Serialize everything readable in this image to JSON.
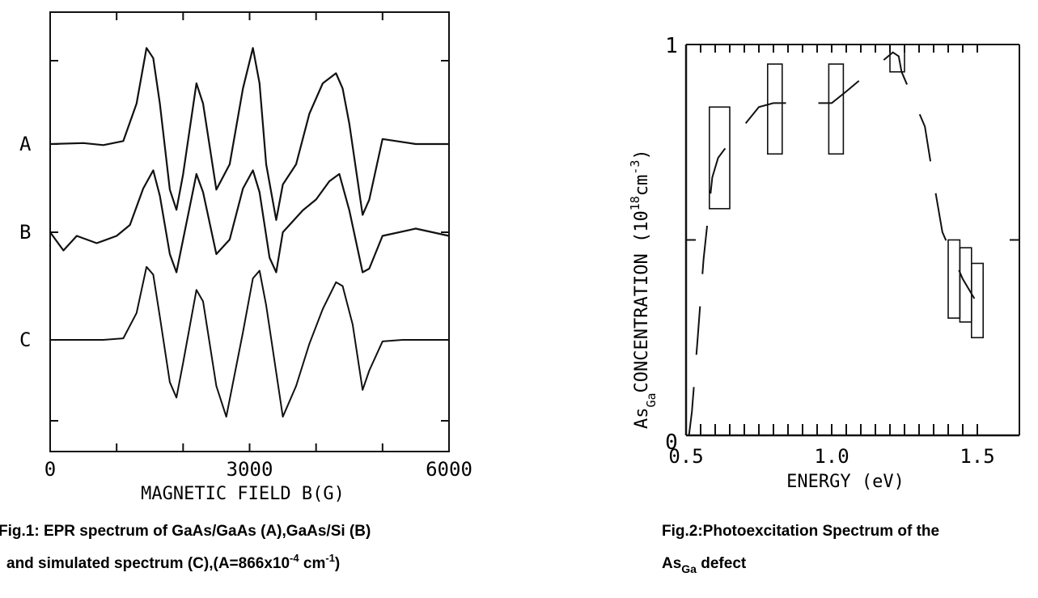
{
  "chart_data": [
    {
      "type": "line",
      "xlabel": "MAGNETIC FIELD B(G)",
      "x_ticks": [
        "0",
        "3000",
        "6000"
      ],
      "xlim": [
        0,
        6000
      ],
      "series": [
        {
          "name": "A",
          "x": [
            0,
            500,
            800,
            1100,
            1300,
            1450,
            1550,
            1650,
            1800,
            1900,
            2000,
            2200,
            2300,
            2500,
            2700,
            2900,
            3050,
            3150,
            3250,
            3400,
            3500,
            3700,
            3900,
            4100,
            4300,
            4400,
            4500,
            4700,
            4800,
            5000,
            5500,
            6000
          ],
          "y": [
            0.0,
            0.01,
            -0.01,
            0.03,
            0.4,
            0.95,
            0.85,
            0.4,
            -0.45,
            -0.65,
            -0.3,
            0.6,
            0.4,
            -0.45,
            -0.2,
            0.55,
            0.95,
            0.6,
            -0.2,
            -0.75,
            -0.4,
            -0.2,
            0.3,
            0.6,
            0.7,
            0.55,
            0.2,
            -0.7,
            -0.55,
            0.05,
            0.0,
            0.0
          ]
        },
        {
          "name": "B",
          "x": [
            0,
            200,
            400,
            700,
            1000,
            1200,
            1400,
            1550,
            1650,
            1800,
            1900,
            2000,
            2200,
            2300,
            2500,
            2700,
            2900,
            3050,
            3150,
            3300,
            3400,
            3500,
            3800,
            4000,
            4200,
            4350,
            4500,
            4700,
            4800,
            5000,
            5500,
            6000
          ],
          "y": [
            0.0,
            -0.25,
            -0.05,
            -0.15,
            -0.05,
            0.1,
            0.6,
            0.85,
            0.5,
            -0.3,
            -0.55,
            -0.1,
            0.8,
            0.55,
            -0.3,
            -0.1,
            0.6,
            0.85,
            0.55,
            -0.35,
            -0.55,
            0.0,
            0.3,
            0.45,
            0.7,
            0.8,
            0.3,
            -0.55,
            -0.5,
            -0.05,
            0.05,
            -0.05
          ]
        },
        {
          "name": "C",
          "x": [
            0,
            800,
            1100,
            1300,
            1450,
            1550,
            1650,
            1800,
            1900,
            2000,
            2200,
            2300,
            2500,
            2650,
            2900,
            3050,
            3150,
            3250,
            3500,
            3700,
            3900,
            4100,
            4300,
            4400,
            4550,
            4700,
            4800,
            5000,
            5300,
            6000
          ],
          "y": [
            0.0,
            0.0,
            0.02,
            0.35,
            0.95,
            0.85,
            0.3,
            -0.55,
            -0.75,
            -0.3,
            0.65,
            0.5,
            -0.6,
            -1.0,
            0.1,
            0.8,
            0.9,
            0.45,
            -1.0,
            -0.6,
            -0.05,
            0.4,
            0.75,
            0.7,
            0.2,
            -0.65,
            -0.4,
            -0.02,
            0.0,
            0.0
          ]
        }
      ],
      "caption": [
        "Fig.1: EPR spectrum of  GaAs/GaAs (A),GaAs/Si (B)",
        "and  simulated spectrum (C),(A=866x10",
        "-4",
        " cm",
        "-1",
        ")"
      ]
    },
    {
      "type": "scatter",
      "xlabel": "ENERGY (eV)",
      "ylabel": "As Ga CONCENTRATION (10 18 cm -3)",
      "x_ticks": [
        "0.5",
        "1.0",
        "1.5"
      ],
      "y_ticks": [
        "0",
        "1"
      ],
      "xlim": [
        0.5,
        1.5
      ],
      "ylim": [
        0,
        1
      ],
      "boxes": [
        {
          "x_range": [
            0.58,
            0.65
          ],
          "y_range": [
            0.58,
            0.84
          ]
        },
        {
          "x_range": [
            0.78,
            0.83
          ],
          "y_range": [
            0.72,
            0.95
          ]
        },
        {
          "x_range": [
            0.99,
            1.04
          ],
          "y_range": [
            0.72,
            0.95
          ]
        },
        {
          "x_range": [
            1.2,
            1.25
          ],
          "y_range": [
            0.93,
            1.0
          ]
        },
        {
          "x_range": [
            1.4,
            1.44
          ],
          "y_range": [
            0.3,
            0.5
          ]
        },
        {
          "x_range": [
            1.44,
            1.48
          ],
          "y_range": [
            0.29,
            0.48
          ]
        },
        {
          "x_range": [
            1.48,
            1.52
          ],
          "y_range": [
            0.25,
            0.44
          ]
        }
      ],
      "curve_x": [
        0.51,
        0.52,
        0.54,
        0.56,
        0.59,
        0.61,
        0.63,
        0.75,
        0.8,
        0.85,
        1.0,
        1.05,
        1.21,
        1.23,
        1.24,
        1.32,
        1.35,
        1.38,
        1.45,
        1.49
      ],
      "curve_y": [
        0.0,
        0.06,
        0.25,
        0.45,
        0.66,
        0.71,
        0.73,
        0.84,
        0.85,
        0.85,
        0.85,
        0.88,
        0.98,
        0.97,
        0.93,
        0.79,
        0.65,
        0.52,
        0.4,
        0.35
      ],
      "caption": [
        "Fig.2:Photoexcitation Spectrum of the",
        "As",
        "Ga",
        " defect"
      ]
    }
  ]
}
